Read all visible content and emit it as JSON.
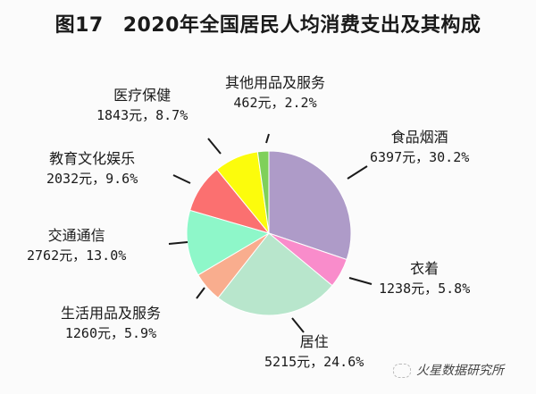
{
  "chart_data": {
    "type": "pie",
    "title": "图17　2020年全国居民人均消费支出及其构成",
    "figure_label": "图17",
    "title_text": "2020年全国居民人均消费支出及其构成",
    "unit": "元",
    "start_angle": "12 o'clock",
    "direction": "clockwise",
    "slices": [
      {
        "name": "食品烟酒",
        "value": 6397,
        "percent": 30.2,
        "color": "#ae9bc8",
        "text": "6397元，30.2%"
      },
      {
        "name": "衣着",
        "value": 1238,
        "percent": 5.8,
        "color": "#f98ccb",
        "text": "1238元，5.8%"
      },
      {
        "name": "居住",
        "value": 5215,
        "percent": 24.6,
        "color": "#b8e6cc",
        "text": "5215元，24.6%"
      },
      {
        "name": "生活用品及服务",
        "value": 1260,
        "percent": 5.9,
        "color": "#f9ad8e",
        "text": "1260元，5.9%"
      },
      {
        "name": "交通通信",
        "value": 2762,
        "percent": 13.0,
        "color": "#8ef7c9",
        "text": "2762元，13.0%"
      },
      {
        "name": "教育文化娱乐",
        "value": 2032,
        "percent": 9.6,
        "color": "#fb7070",
        "text": "2032元，9.6%"
      },
      {
        "name": "医疗保健",
        "value": 1843,
        "percent": 8.7,
        "color": "#fcfc0c",
        "text": "1843元，8.7%"
      },
      {
        "name": "其他用品及服务",
        "value": 462,
        "percent": 2.2,
        "color": "#7fd05a",
        "text": "462元，2.2%"
      }
    ],
    "legend": "none (data labels with leader lines)"
  },
  "watermark": "火星数据研究所"
}
